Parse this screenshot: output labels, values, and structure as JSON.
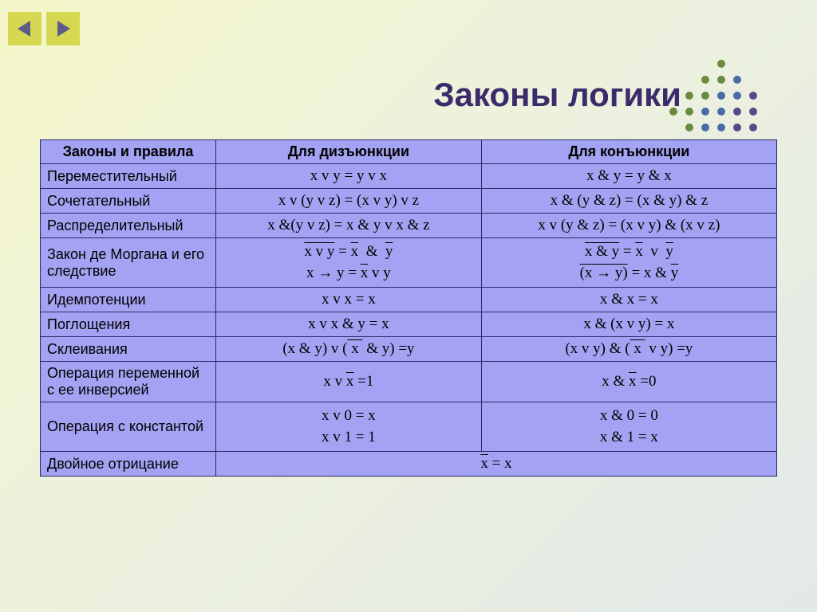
{
  "colors": {
    "title": "#3b2b6a",
    "nav_btn_bg": "#d6d852",
    "nav_arrow": "#5c5c8a",
    "table_bg": "#a4a2f2",
    "table_border": "#2a2a6a",
    "dot_green": "#6a8a3f",
    "dot_blue": "#4a6aa8",
    "dot_purple": "#5a4a8a"
  },
  "title": "Законы логики",
  "headers": [
    "Законы и правила",
    "Для дизъюнкции",
    "Для конъюнкции"
  ],
  "rows": [
    {
      "law": "Переместительный",
      "disj": "x v y = y v x",
      "conj": "x & y = y & x"
    },
    {
      "law": "Сочетательный",
      "disj": "x v (y v z) = (x v y) v z",
      "conj": "x & (y & z) = (x & y) & z"
    },
    {
      "law": "Распределительный",
      "disj": "x &(y v z) = x & y v x & z",
      "conj": "x v (y & z) = (x v y) & (x v z)"
    },
    {
      "law": "Закон де Моргана и его следствие",
      "disj_html": "<span class='formula-line'><span class='over'>x v y</span> = <span class='over'>x</span> &nbsp;&amp;&nbsp; <span class='over'>y</span></span><span class='formula-line'>x → y = <span class='over'>x</span> v y</span>",
      "conj_html": "<span class='formula-line'><span class='over'>x &amp; y</span> = <span class='over'>x</span> &nbsp;v&nbsp; <span class='over'>y</span></span><span class='formula-line'><span class='over'>(x → y)</span> = x &amp; <span class='over'>y</span></span>"
    },
    {
      "law": "Идемпотенции",
      "disj": "x v x = x",
      "conj": "x & x = x"
    },
    {
      "law": "Поглощения",
      "disj": "x v x & y = x",
      "conj": "x & (x v y) = x"
    },
    {
      "law": "Склеивания",
      "disj_html": "(x &amp; y) v (<span class='over'>&nbsp;x&nbsp;</span> &amp; y) =y",
      "conj_html": "(x v y) &amp; (<span class='over'>&nbsp;x&nbsp;</span> v y) =y"
    },
    {
      "law": "Операция переменной с ее инверсией",
      "disj_html": "x v <span class='over'>x</span> =1",
      "conj_html": "x &amp; <span class='over'>x</span> =0"
    },
    {
      "law": "Операция с константой",
      "disj_html": "<span class='formula-line'>x v 0 = x</span><span class='formula-line'>x v 1 = 1</span>",
      "conj_html": "<span class='formula-line'>x &amp; 0 = 0</span><span class='formula-line'>x &amp; 1 = x</span>"
    },
    {
      "law": "Двойное отрицание",
      "span_html": "<span class='over'><span class='over' style='padding-top:2px;'>x</span></span> = x",
      "colspan": 2
    }
  ],
  "dots_grid": {
    "rows": 6,
    "cols": 6,
    "radius": 5,
    "spacing": 20,
    "colors": [
      [
        "",
        "",
        "",
        "#6a8a3f",
        "",
        ""
      ],
      [
        "",
        "",
        "#6a8a3f",
        "#6a8a3f",
        "#4a6aa8",
        ""
      ],
      [
        "",
        "#6a8a3f",
        "#6a8a3f",
        "#4a6aa8",
        "#4a6aa8",
        "#5a4a8a"
      ],
      [
        "#6a8a3f",
        "#6a8a3f",
        "#4a6aa8",
        "#4a6aa8",
        "#5a4a8a",
        "#5a4a8a"
      ],
      [
        "",
        "#6a8a3f",
        "#4a6aa8",
        "#4a6aa8",
        "#5a4a8a",
        "#5a4a8a"
      ],
      [
        "",
        "",
        "#4a6aa8",
        "#4a6aa8",
        "#5a4a8a",
        ""
      ]
    ]
  }
}
